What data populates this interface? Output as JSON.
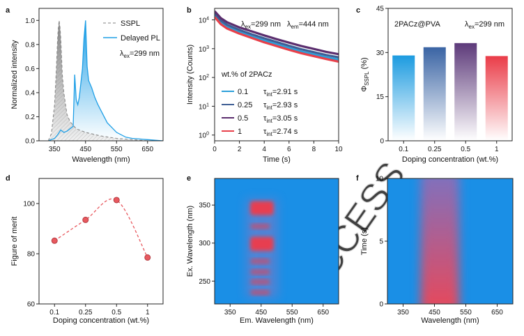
{
  "chart_data": [
    {
      "panel": "a",
      "type": "area",
      "xlabel": "Wavelength (nm)",
      "ylabel": "Normalized intensity",
      "xlim": [
        300,
        700
      ],
      "ylim": [
        0,
        1.1
      ],
      "xticks": [
        "350",
        "450",
        "550",
        "650"
      ],
      "yticks": [
        "0.0",
        "0.2",
        "0.4",
        "0.6",
        "0.8",
        "1.0"
      ],
      "legend": [
        "SSPL",
        "Delayed PL"
      ],
      "annotation": {
        "main": "λ",
        "sub": "ex",
        "rest": "=299 nm"
      },
      "series": [
        {
          "name": "SSPL",
          "style": "dashed-gray-fill",
          "x": [
            330,
            340,
            350,
            355,
            360,
            362,
            365,
            368,
            370,
            375,
            380,
            390,
            400,
            420,
            450,
            500,
            550,
            600,
            650,
            700
          ],
          "values": [
            0.0,
            0.06,
            0.3,
            0.55,
            0.85,
            0.93,
            1.0,
            0.93,
            0.85,
            0.55,
            0.4,
            0.22,
            0.16,
            0.1,
            0.07,
            0.04,
            0.02,
            0.01,
            0.0,
            0.0
          ]
        },
        {
          "name": "Delayed PL",
          "style": "blue-gradient-fill",
          "x": [
            330,
            350,
            360,
            370,
            380,
            390,
            400,
            410,
            415,
            420,
            425,
            430,
            440,
            445,
            450,
            455,
            460,
            470,
            480,
            490,
            500,
            520,
            550,
            580,
            600,
            650,
            700
          ],
          "values": [
            0.0,
            0.02,
            0.05,
            0.09,
            0.07,
            0.08,
            0.1,
            0.12,
            0.55,
            0.34,
            0.3,
            0.36,
            0.6,
            0.85,
            1.0,
            0.62,
            0.5,
            0.44,
            0.36,
            0.3,
            0.25,
            0.15,
            0.07,
            0.03,
            0.02,
            0.01,
            0.0
          ]
        }
      ]
    },
    {
      "panel": "b",
      "type": "line",
      "xlabel": "Time (s)",
      "ylabel": "Intensity (Counts)",
      "xlim": [
        0,
        10
      ],
      "ylim_log10": [
        -0.2,
        4.4
      ],
      "xticks": [
        "0",
        "2",
        "4",
        "6",
        "8",
        "10"
      ],
      "yticks": [
        {
          "base": "10",
          "exp": "4"
        },
        {
          "base": "10",
          "exp": "3"
        },
        {
          "base": "10",
          "exp": "2"
        },
        {
          "base": "10",
          "exp": "1"
        },
        {
          "base": "10",
          "exp": "0"
        }
      ],
      "annotation_ex": {
        "main": "λ",
        "sub": "ex",
        "rest": "=299 nm"
      },
      "annotation_em": {
        "main": "λ",
        "sub": "em",
        "rest": "=444 nm"
      },
      "legend_title": "wt.% of 2PACz",
      "series": [
        {
          "name": "0.1",
          "color": "#2b9fd9",
          "tau_label": {
            "main": "τ",
            "sub": "int",
            "rest": "=2.91 s"
          },
          "x": [
            0,
            0.5,
            1,
            2,
            3,
            4,
            5,
            6,
            7,
            8,
            9,
            10
          ],
          "log10": [
            4.15,
            3.9,
            3.75,
            3.57,
            3.42,
            3.28,
            3.15,
            3.02,
            2.9,
            2.8,
            2.7,
            2.62
          ]
        },
        {
          "name": "0.25",
          "color": "#3f5f95",
          "tau_label": {
            "main": "τ",
            "sub": "int",
            "rest": "=2.93 s"
          },
          "x": [
            0,
            0.5,
            1,
            2,
            3,
            4,
            5,
            6,
            7,
            8,
            9,
            10
          ],
          "log10": [
            4.22,
            3.98,
            3.83,
            3.65,
            3.5,
            3.36,
            3.23,
            3.1,
            2.98,
            2.88,
            2.78,
            2.7
          ]
        },
        {
          "name": "0.5",
          "color": "#5b2e6e",
          "tau_label": {
            "main": "τ",
            "sub": "int",
            "rest": "=3.05 s"
          },
          "x": [
            0,
            0.5,
            1,
            2,
            3,
            4,
            5,
            6,
            7,
            8,
            9,
            10
          ],
          "log10": [
            4.3,
            4.06,
            3.92,
            3.74,
            3.6,
            3.46,
            3.33,
            3.21,
            3.09,
            2.99,
            2.89,
            2.81
          ]
        },
        {
          "name": "1",
          "color": "#e8404a",
          "tau_label": {
            "main": "τ",
            "sub": "int",
            "rest": "=2.74 s"
          },
          "x": [
            0,
            0.5,
            1,
            2,
            3,
            4,
            5,
            6,
            7,
            8,
            9,
            10
          ],
          "log10": [
            4.1,
            3.85,
            3.7,
            3.52,
            3.37,
            3.22,
            3.09,
            2.96,
            2.84,
            2.74,
            2.64,
            2.55
          ]
        }
      ]
    },
    {
      "panel": "c",
      "type": "bar",
      "title": "2PACz@PVA",
      "annotation": {
        "main": "λ",
        "sub": "ex",
        "rest": "=299 nm"
      },
      "xlabel": "Doping concentration (wt.%)",
      "ylabel": {
        "main": "Φ",
        "sub": "SSPL",
        "rest": " (%)"
      },
      "ylim": [
        0,
        45
      ],
      "yticks": [
        "0",
        "15",
        "30",
        "45"
      ],
      "categories": [
        "0.1",
        "0.25",
        "0.5",
        "1"
      ],
      "values": [
        29,
        31.8,
        33.2,
        28.8
      ],
      "colors": [
        "#1c9be0",
        "#3a64a4",
        "#5d3a7a",
        "#ea3c48"
      ]
    },
    {
      "panel": "d",
      "type": "scatter",
      "xlabel": "Doping concentration (wt.%)",
      "ylabel": "Figure of merit",
      "ylim": [
        60,
        110
      ],
      "yticks": [
        "60",
        "80",
        "100"
      ],
      "categories": [
        "0.1",
        "0.25",
        "0.5",
        "1"
      ],
      "values": [
        85.2,
        93.5,
        101.4,
        78.5
      ],
      "marker_color": "#e8595f"
    },
    {
      "panel": "e",
      "type": "heatmap",
      "xlabel": "Em. Wavelength (nm)",
      "ylabel": "Ex. Wavelength (nm)",
      "xlim": [
        300,
        700
      ],
      "ylim": [
        220,
        385
      ],
      "xticks": [
        "350",
        "450",
        "550",
        "650"
      ],
      "yticks": [
        "250",
        "300",
        "350"
      ],
      "excitation_bands_nm": [
        235,
        249,
        262,
        276,
        299,
        322,
        346
      ],
      "strong_bands_nm": [
        299,
        346
      ],
      "emission_range_nm": [
        415,
        490
      ],
      "background": "#1a8fe6",
      "hot": "#f03a4a"
    },
    {
      "panel": "f",
      "type": "heatmap",
      "xlabel": "Wavelength (nm)",
      "ylabel": "Time (s)",
      "xlim": [
        300,
        700
      ],
      "ylim": [
        0,
        10
      ],
      "xticks": [
        "350",
        "450",
        "550",
        "650"
      ],
      "yticks": [
        "0",
        "5",
        "10"
      ],
      "emission_range_nm": [
        415,
        520
      ],
      "background": "#1a8fe6",
      "hot": "#f03a4a"
    }
  ],
  "watermark": "ACCESS"
}
